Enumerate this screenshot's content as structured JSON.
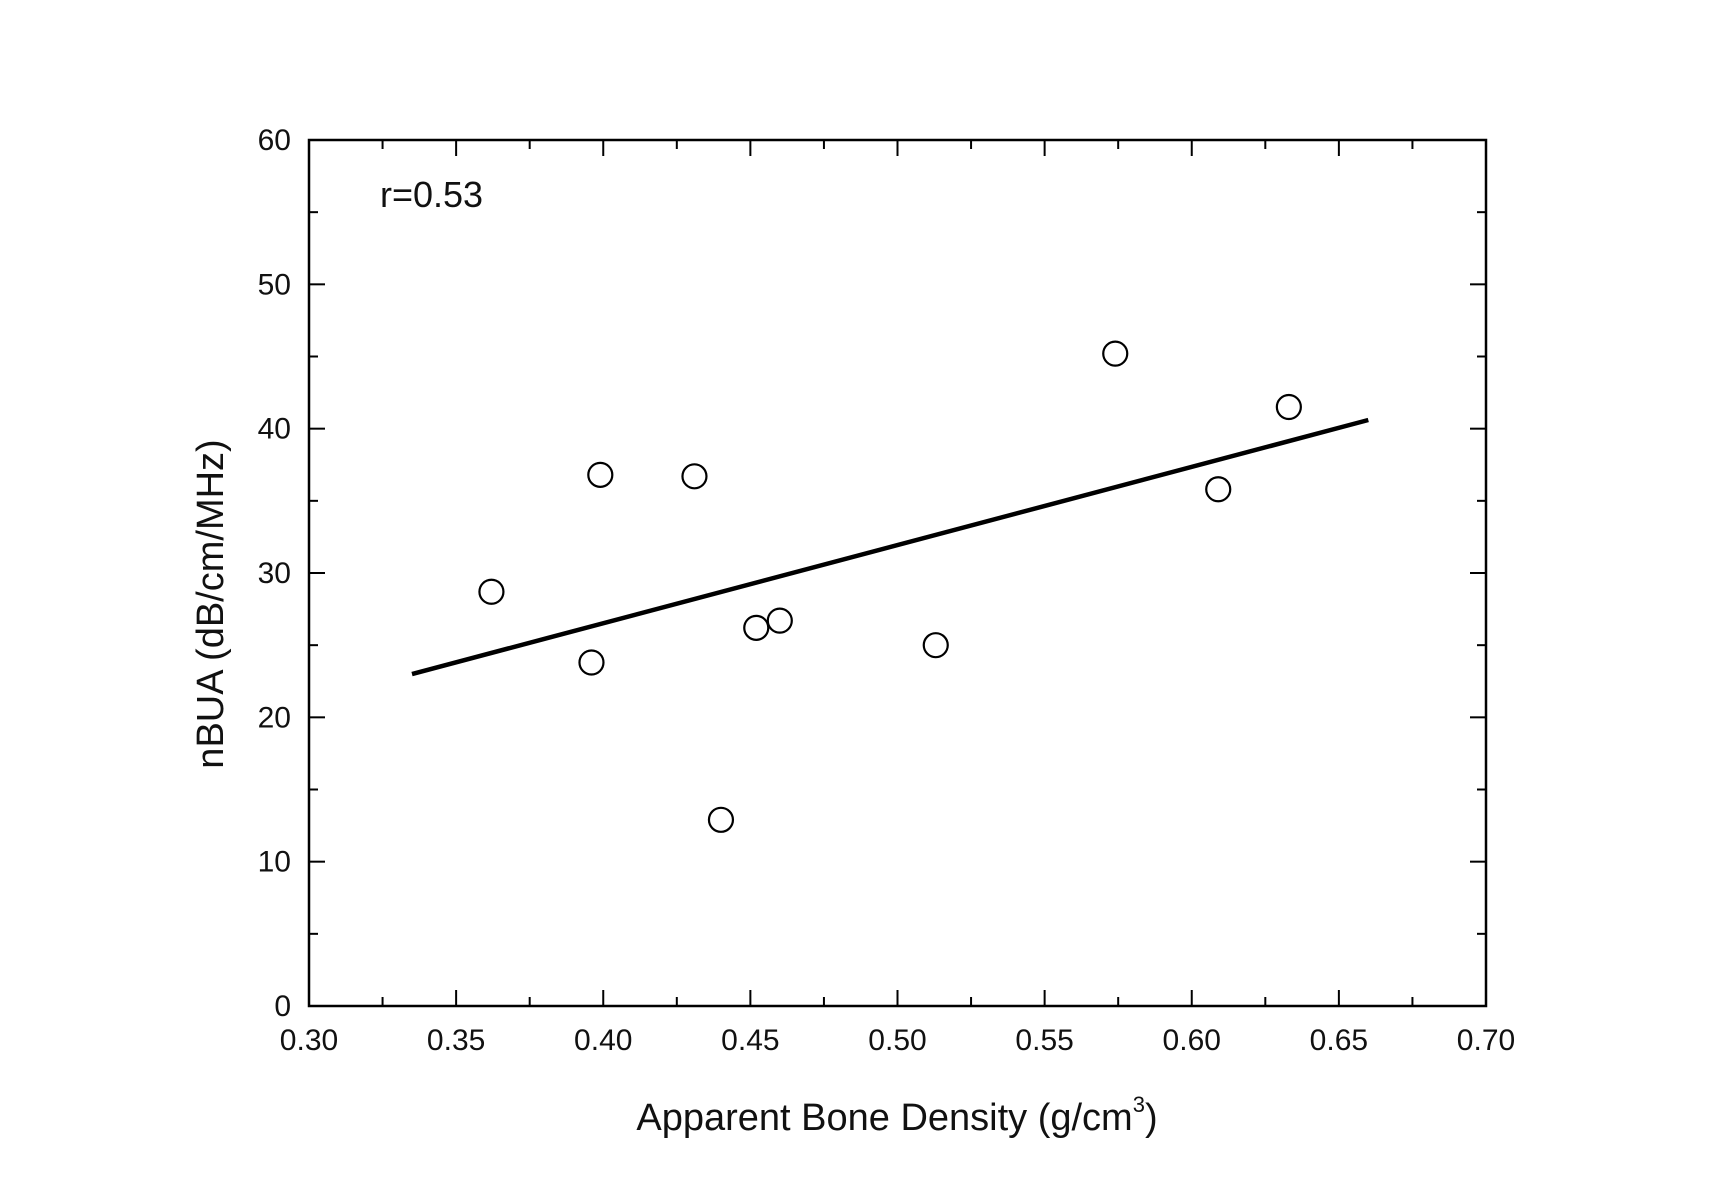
{
  "chart_data": {
    "type": "scatter",
    "title": "",
    "xlabel": "Apparent Bone Density (g/cm",
    "xlabel_superscript": "3",
    "xlabel_suffix": ")",
    "ylabel": "nBUA (dB/cm/MHz)",
    "xlim": [
      0.3,
      0.7
    ],
    "ylim": [
      0,
      60
    ],
    "x_ticks": [
      "0.30",
      "0.35",
      "0.40",
      "0.45",
      "0.50",
      "0.55",
      "0.60",
      "0.65",
      "0.70"
    ],
    "y_ticks": [
      "0",
      "10",
      "20",
      "30",
      "40",
      "50",
      "60"
    ],
    "x_minor_step": 0.025,
    "y_minor_step": 5,
    "grid": false,
    "annotation": "r=0.53",
    "points": [
      {
        "x": 0.362,
        "y": 28.7
      },
      {
        "x": 0.396,
        "y": 23.8
      },
      {
        "x": 0.399,
        "y": 36.8
      },
      {
        "x": 0.431,
        "y": 36.7
      },
      {
        "x": 0.44,
        "y": 12.9
      },
      {
        "x": 0.452,
        "y": 26.2
      },
      {
        "x": 0.46,
        "y": 26.7
      },
      {
        "x": 0.513,
        "y": 25.0
      },
      {
        "x": 0.574,
        "y": 45.2
      },
      {
        "x": 0.609,
        "y": 35.8
      },
      {
        "x": 0.633,
        "y": 41.5
      }
    ],
    "fit_line": {
      "x": [
        0.335,
        0.66
      ],
      "y": [
        23.0,
        40.6
      ]
    },
    "marker_color": "#000000",
    "line_color": "#000000"
  }
}
